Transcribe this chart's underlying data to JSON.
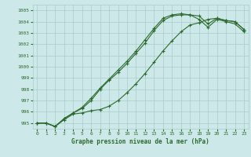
{
  "xlabel": "Graphe pression niveau de la mer (hPa)",
  "bg_color": "#cce8e8",
  "grid_color": "#aacccc",
  "line_color": "#2d6a2d",
  "xlim": [
    -0.5,
    23.5
  ],
  "ylim": [
    994.5,
    1005.5
  ],
  "yticks": [
    995,
    996,
    997,
    998,
    999,
    1000,
    1001,
    1002,
    1003,
    1004,
    1005
  ],
  "xticks": [
    0,
    1,
    2,
    3,
    4,
    5,
    6,
    7,
    8,
    9,
    10,
    11,
    12,
    13,
    14,
    15,
    16,
    17,
    18,
    19,
    20,
    21,
    22,
    23
  ],
  "line1_x": [
    0,
    1,
    2,
    3,
    4,
    5,
    6,
    7,
    8,
    9,
    10,
    11,
    12,
    13,
    14,
    15,
    16,
    17,
    18,
    19,
    20,
    21,
    22,
    23
  ],
  "line1_y": [
    995.0,
    995.0,
    994.7,
    995.4,
    995.9,
    996.3,
    997.0,
    998.0,
    998.8,
    999.5,
    1000.3,
    1001.2,
    1002.1,
    1003.2,
    1004.1,
    1004.5,
    1004.6,
    1004.6,
    1004.5,
    1003.8,
    1004.3,
    1004.1,
    1004.0,
    1003.3
  ],
  "line2_x": [
    0,
    1,
    2,
    3,
    4,
    5,
    6,
    7,
    8,
    9,
    10,
    11,
    12,
    13,
    14,
    15,
    16,
    17,
    18,
    19,
    20,
    21,
    22,
    23
  ],
  "line2_y": [
    995.0,
    995.0,
    994.7,
    995.4,
    995.9,
    996.4,
    997.2,
    998.1,
    998.9,
    999.7,
    1000.5,
    1001.4,
    1002.4,
    1003.4,
    1004.3,
    1004.6,
    1004.7,
    1004.6,
    1004.2,
    1003.5,
    1004.2,
    1004.0,
    1003.8,
    1003.1
  ],
  "line3_x": [
    0,
    1,
    2,
    3,
    4,
    5,
    6,
    7,
    8,
    9,
    10,
    11,
    12,
    13,
    14,
    15,
    16,
    17,
    18,
    19,
    20,
    21,
    22,
    23
  ],
  "line3_y": [
    995.0,
    995.0,
    994.7,
    995.3,
    995.8,
    995.9,
    996.1,
    996.2,
    996.5,
    997.0,
    997.7,
    998.5,
    999.4,
    1000.4,
    1001.4,
    1002.3,
    1003.1,
    1003.7,
    1003.9,
    1004.2,
    1004.3,
    1004.1,
    1004.0,
    1003.3
  ],
  "markersize": 3,
  "linewidth": 0.8
}
